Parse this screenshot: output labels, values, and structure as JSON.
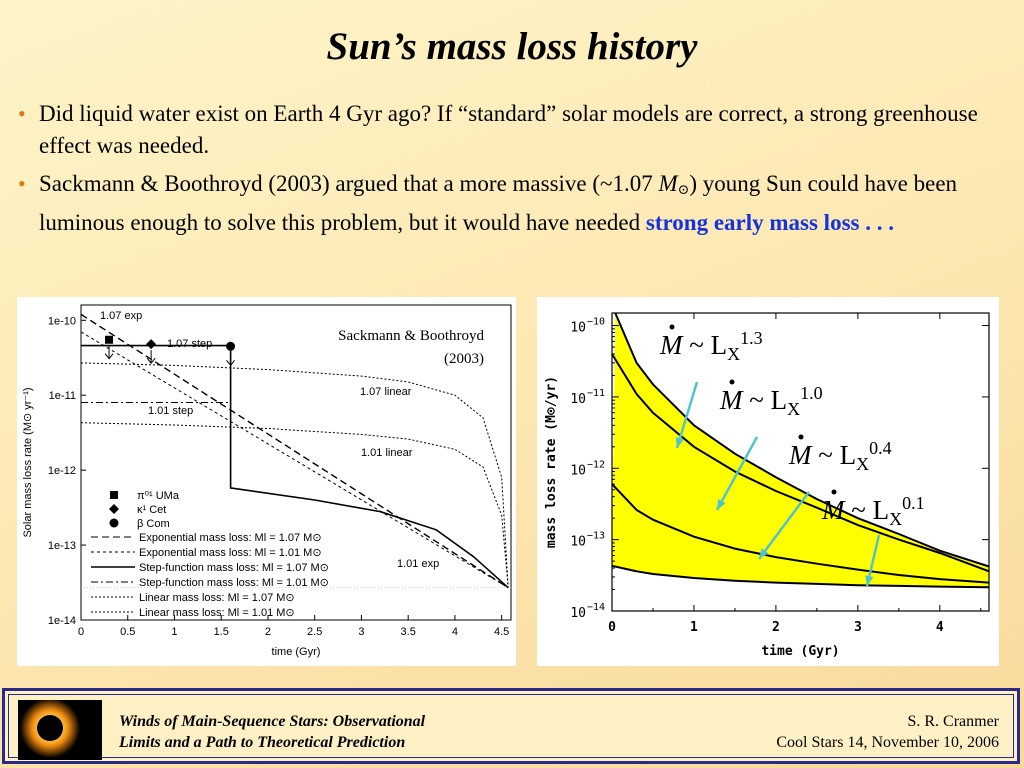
{
  "slide": {
    "title": "Sun’s mass loss history",
    "bullets": [
      {
        "text": "Did liquid water exist on Earth 4 Gyr ago?   If “standard” solar models are correct, a strong greenhouse effect was needed."
      },
      {
        "before": "Sackmann & Boothroyd (2003) argued that a more massive (~1.07 ",
        "msun": "M",
        "after": ") young Sun could have been luminous enough to solve this problem, but it would have needed",
        "highlight": "strong early mass loss . . ."
      }
    ],
    "bullet_char": "•",
    "accent_color": "#1432e0",
    "bullet_color": "#e07a10"
  },
  "footer": {
    "title_line1": "Winds of Main-Sequence Stars:  Observational",
    "title_line2": "Limits and a Path to Theoretical Prediction",
    "author": "S. R. Cranmer",
    "venue": "Cool Stars 14,  November 10, 2006",
    "border_color": "#2a2a8a"
  },
  "chart_data": [
    {
      "type": "line",
      "annotation": "Sackmann & Boothroyd",
      "annotation_year": "(2003)",
      "xlabel": "time   (Gyr)",
      "ylabel": "Solar mass loss rate   (M⊙ yr⁻¹)",
      "y_log": true,
      "xlim": [
        0,
        4.6
      ],
      "ylim": [
        1e-14,
        1.6e-10
      ],
      "xticks": [
        "0",
        "0.5",
        "1",
        "1.5",
        "2",
        "2.5",
        "3",
        "3.5",
        "4",
        "4.5"
      ],
      "yticks": [
        "1e-14",
        "1e-13",
        "1e-12",
        "1e-11",
        "1e-10"
      ],
      "series": [
        {
          "name": "Exponential mass loss: Ml = 1.07 M⊙",
          "label": "1.07 exp",
          "style": "dashed",
          "x": [
            0,
            4.57
          ],
          "y": [
            1.2e-10,
            2.7e-14
          ]
        },
        {
          "name": "Exponential mass loss: Ml = 1.01 M⊙",
          "label": "1.01 exp",
          "style": "short-dashed",
          "x": [
            0,
            4.57
          ],
          "y": [
            7e-11,
            2.7e-14
          ]
        },
        {
          "name": "Step-function mass loss: Ml = 1.07 M⊙",
          "label": "1.07 step",
          "style": "solid",
          "x": [
            0,
            1.6,
            1.6,
            2.5,
            3.2,
            3.8,
            4.2,
            4.57
          ],
          "y": [
            4.6e-11,
            4.6e-11,
            5.8e-13,
            4e-13,
            2.8e-13,
            1.6e-13,
            7e-14,
            2.7e-14
          ]
        },
        {
          "name": "Step-function mass loss: Ml = 1.01 M⊙",
          "label": "1.01 step",
          "style": "dashdot",
          "x": [
            0,
            1.6
          ],
          "y": [
            8e-12,
            8e-12
          ]
        },
        {
          "name": "Linear mass loss: Ml = 1.07 M⊙",
          "label": "1.07 linear",
          "style": "fine-dashed",
          "x": [
            0,
            1,
            2,
            3,
            3.5,
            4,
            4.3,
            4.5,
            4.57
          ],
          "y": [
            2.7e-11,
            2.5e-11,
            2.2e-11,
            1.8e-11,
            1.5e-11,
            1e-11,
            5e-12,
            8e-13,
            2.7e-14
          ]
        },
        {
          "name": "Linear mass loss: Ml = 1.01 M⊙",
          "label": "1.01 linear",
          "style": "fine-dashed",
          "x": [
            0,
            1,
            2,
            3,
            3.5,
            4,
            4.3,
            4.5,
            4.57
          ],
          "y": [
            4.3e-12,
            4e-12,
            3.6e-12,
            3e-12,
            2.6e-12,
            1.9e-12,
            1.1e-12,
            2.5e-13,
            2.7e-14
          ]
        }
      ],
      "points": [
        {
          "name": "π⁰¹ UMa",
          "marker": "square",
          "x": 0.3,
          "y": 5.5e-11
        },
        {
          "name": "κ¹ Cet",
          "marker": "diamond",
          "x": 0.75,
          "y": 4.8e-11
        },
        {
          "name": "β Com",
          "marker": "circle",
          "x": 1.6,
          "y": 4.5e-11
        }
      ],
      "reference_line": {
        "y": 2.7e-14
      },
      "legend_position": "bottom-left"
    },
    {
      "type": "area",
      "xlabel": "time (Gyr)",
      "ylabel": "mass loss rate (M⊙/yr)",
      "y_log": true,
      "xlim": [
        0,
        4.6
      ],
      "ylim": [
        1e-14,
        1.5e-10
      ],
      "xticks": [
        "0",
        "1",
        "2",
        "3",
        "4"
      ],
      "yticks": [
        {
          "base": "10",
          "exp": "−10"
        },
        {
          "base": "10",
          "exp": "−11"
        },
        {
          "base": "10",
          "exp": "−12"
        },
        {
          "base": "10",
          "exp": "−13"
        },
        {
          "base": "10",
          "exp": "−14"
        }
      ],
      "fill_color": "#ffff00",
      "arrow_color": "#4fc4cc",
      "series": [
        {
          "name": "Ṁ ~ LX1.3",
          "label_main": "M",
          "label_mid": " ~ L",
          "label_sub": "X",
          "label_sup": "1.3",
          "x": [
            0.04,
            0.3,
            0.5,
            1,
            1.5,
            2,
            2.5,
            3,
            3.5,
            4,
            4.6
          ],
          "y": [
            1.5e-10,
            3e-11,
            1.5e-11,
            4e-12,
            1.6e-12,
            7.5e-13,
            3.7e-13,
            2e-13,
            1.2e-13,
            7e-14,
            4.2e-14
          ]
        },
        {
          "name": "Ṁ ~ LX1.0",
          "label_main": "M",
          "label_mid": " ~ L",
          "label_sub": "X",
          "label_sup": "1.0",
          "x": [
            0,
            0.3,
            0.5,
            1,
            1.5,
            2,
            2.5,
            3,
            3.5,
            4,
            4.6
          ],
          "y": [
            4e-11,
            1.1e-11,
            6e-12,
            2e-12,
            9e-13,
            4.8e-13,
            2.8e-13,
            1.6e-13,
            1e-13,
            6.5e-14,
            3.6e-14
          ]
        },
        {
          "name": "Ṁ ~ LX0.4",
          "label_main": "M",
          "label_mid": " ~ L",
          "label_sub": "X",
          "label_sup": "0.4",
          "x": [
            0,
            0.3,
            0.5,
            1,
            1.5,
            2,
            2.5,
            3,
            3.5,
            4,
            4.6
          ],
          "y": [
            6e-13,
            2.6e-13,
            1.9e-13,
            1.1e-13,
            7.5e-14,
            5.7e-14,
            4.6e-14,
            3.8e-14,
            3.2e-14,
            2.8e-14,
            2.5e-14
          ]
        },
        {
          "name": "Ṁ ~ LX0.1",
          "label_main": "M",
          "label_mid": " ~ L",
          "label_sub": "X",
          "label_sup": "0.1",
          "x": [
            0,
            0.3,
            0.5,
            1,
            1.5,
            2,
            2.5,
            3,
            3.5,
            4,
            4.6
          ],
          "y": [
            4.3e-14,
            3.6e-14,
            3.3e-14,
            2.9e-14,
            2.65e-14,
            2.5e-14,
            2.4e-14,
            2.3e-14,
            2.25e-14,
            2.2e-14,
            2.15e-14
          ]
        }
      ]
    }
  ]
}
